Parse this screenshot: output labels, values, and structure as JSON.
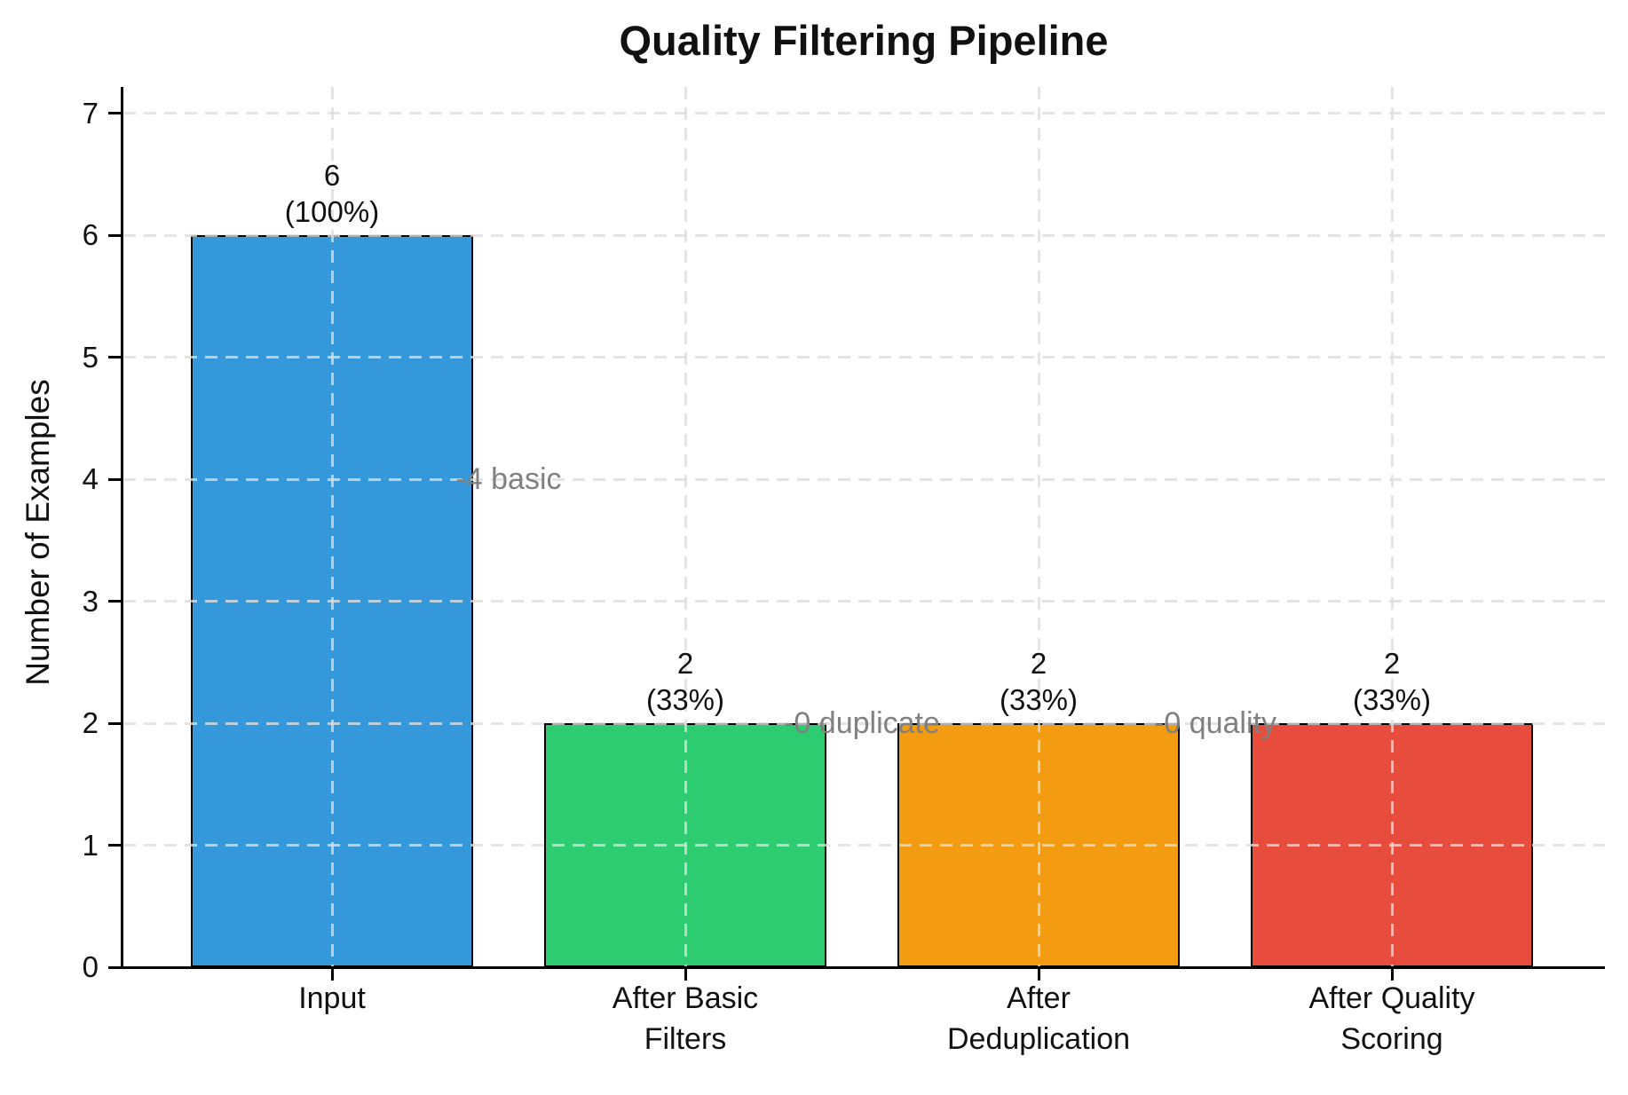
{
  "chart_data": {
    "type": "bar",
    "title": "Quality Filtering Pipeline",
    "ylabel": "Number of Examples",
    "xlabel": "",
    "categories": [
      "Input",
      "After Basic\nFilters",
      "After\nDeduplication",
      "After Quality\nScoring"
    ],
    "values": [
      6,
      2,
      2,
      2
    ],
    "bar_value_labels": [
      [
        "6",
        "(100%)"
      ],
      [
        "2",
        "(33%)"
      ],
      [
        "2",
        "(33%)"
      ],
      [
        "2",
        "(33%)"
      ]
    ],
    "bar_colors": [
      "#3498db",
      "#2ecc71",
      "#f39c12",
      "#e74c3c"
    ],
    "bar_edge_color": "#000000",
    "yticks": [
      "0",
      "1",
      "2",
      "3",
      "4",
      "5",
      "6",
      "7"
    ],
    "ylim": [
      0,
      7.2
    ],
    "grid": {
      "style": "dashed",
      "axes": "both",
      "color": "#dddddd",
      "on_top_of_bars": true
    },
    "legend": "none",
    "annotations": [
      {
        "text": "-4 basic",
        "between_bars": [
          0,
          1
        ],
        "y": 4,
        "color": "#808080"
      },
      {
        "text": "-0 duplicate",
        "between_bars": [
          1,
          2
        ],
        "y": 2,
        "color": "#808080"
      },
      {
        "text": "-0 quality",
        "between_bars": [
          2,
          3
        ],
        "y": 2,
        "color": "#808080"
      }
    ]
  }
}
